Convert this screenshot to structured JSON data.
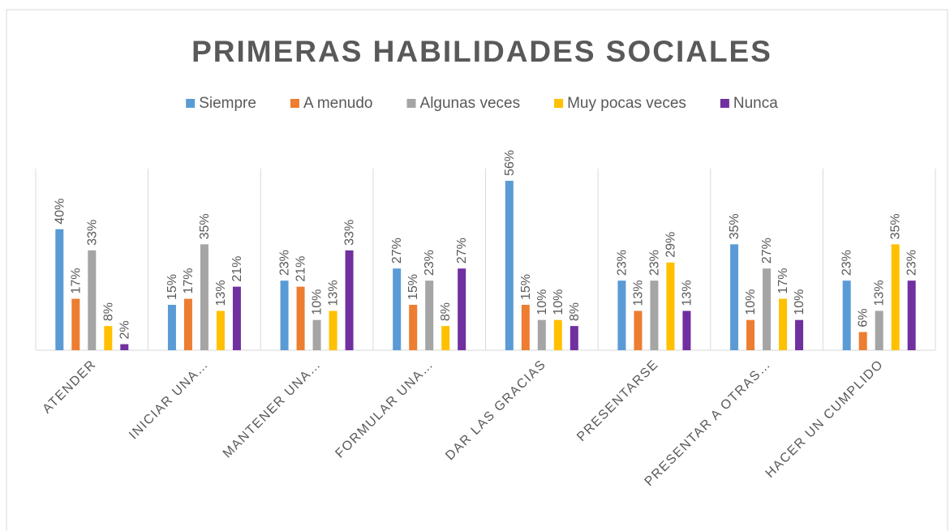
{
  "chart_data": {
    "type": "bar",
    "title": "PRIMERAS HABILIDADES SOCIALES",
    "categories": [
      "ATENDER",
      "INICIAR UNA…",
      "MANTENER UNA…",
      "FORMULAR UNA…",
      "DAR LAS GRACIAS",
      "PRESENTARSE",
      "PRESENTAR A OTRAS…",
      "HACER UN CUMPLIDO"
    ],
    "series": [
      {
        "name": "Siempre",
        "color": "#5b9bd5",
        "values": [
          40,
          15,
          23,
          27,
          56,
          23,
          35,
          23
        ],
        "value_labels": [
          "40%",
          "15%",
          "23%",
          "27%",
          "56%",
          "23%",
          "35%",
          "23%"
        ]
      },
      {
        "name": "A menudo",
        "color": "#ed7d31",
        "values": [
          17,
          17,
          21,
          15,
          15,
          13,
          10,
          6
        ],
        "value_labels": [
          "17%",
          "17%",
          "21%",
          "15%",
          "15%",
          "13%",
          "10%",
          "6%"
        ]
      },
      {
        "name": "Algunas veces",
        "color": "#a5a5a5",
        "values": [
          33,
          35,
          10,
          23,
          10,
          23,
          27,
          13
        ],
        "value_labels": [
          "33%",
          "35%",
          "10%",
          "23%",
          "10%",
          "23%",
          "27%",
          "13%"
        ]
      },
      {
        "name": "Muy pocas veces",
        "color": "#ffc000",
        "values": [
          8,
          13,
          13,
          8,
          10,
          29,
          17,
          35
        ],
        "value_labels": [
          "8%",
          "13%",
          "13%",
          "8%",
          "10%",
          "29%",
          "17%",
          "35%"
        ]
      },
      {
        "name": "Nunca",
        "color": "#7030a0",
        "values": [
          2,
          21,
          33,
          27,
          8,
          13,
          10,
          23
        ],
        "value_labels": [
          "2%",
          "21%",
          "33%",
          "27%",
          "8%",
          "13%",
          "10%",
          "23%"
        ]
      }
    ],
    "legend": "top"
  }
}
